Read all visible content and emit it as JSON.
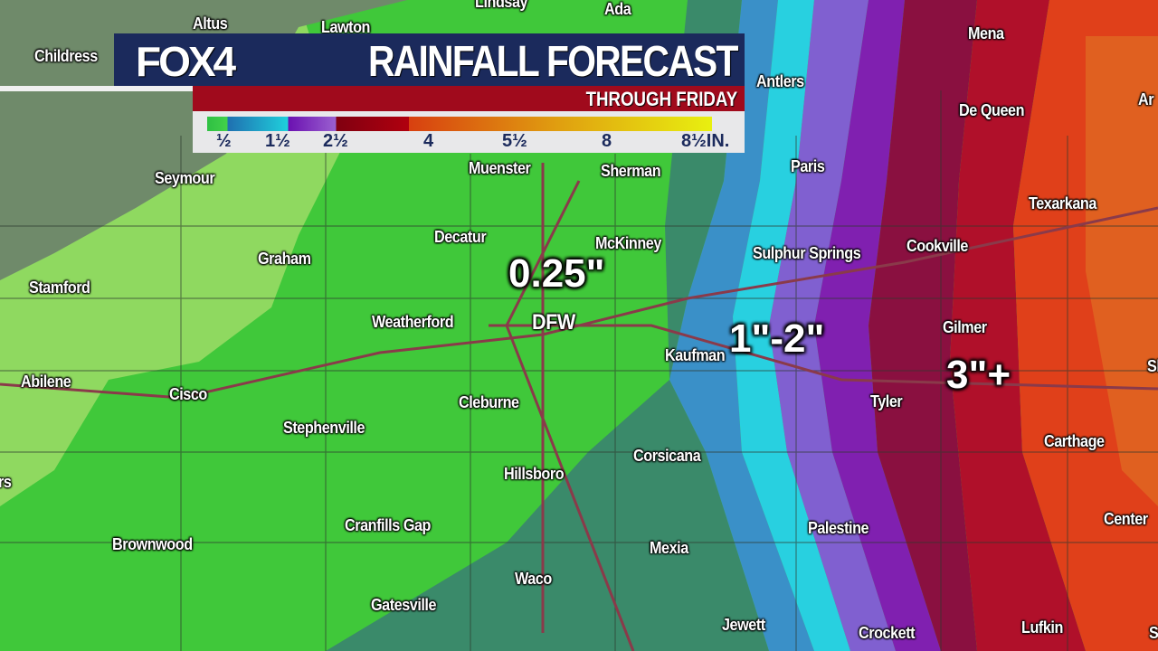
{
  "header": {
    "logo": "FOX4",
    "title": "RAINFALL FORECAST",
    "subtitle": "THROUGH FRIDAY"
  },
  "legend": {
    "ticks": [
      "½",
      "1½",
      "2½",
      "4",
      "5½",
      "8",
      "8½IN."
    ],
    "colors": [
      "#42d04a",
      "#1fa8d0",
      "#8040c0",
      "#a0000f",
      "#e07010",
      "#e8f010"
    ]
  },
  "amounts": [
    {
      "label": "0.25\""
    },
    {
      "label": "1\"-2\""
    },
    {
      "label": "3\"+"
    }
  ],
  "cities": [
    "Altus",
    "Lawton",
    "Lindsay",
    "Ada",
    "Mena",
    "Childress",
    "Antlers",
    "De Queen",
    "Ar",
    "Seymour",
    "Muenster",
    "Sherman",
    "Paris",
    "Texarkana",
    "Graham",
    "Decatur",
    "McKinney",
    "Sulphur Springs",
    "Cookville",
    "Stamford",
    "Weatherford",
    "DFW",
    "Kaufman",
    "Gilmer",
    "Shr",
    "Abilene",
    "Cisco",
    "Cleburne",
    "Tyler",
    "Stephenville",
    "Carthage",
    "Corsicana",
    "rs",
    "Hillsboro",
    "Cranfills Gap",
    "Palestine",
    "Center",
    "Brownwood",
    "Mexia",
    "Waco",
    "Gatesville",
    "Jewett",
    "Crockett",
    "Lufkin",
    "S"
  ]
}
